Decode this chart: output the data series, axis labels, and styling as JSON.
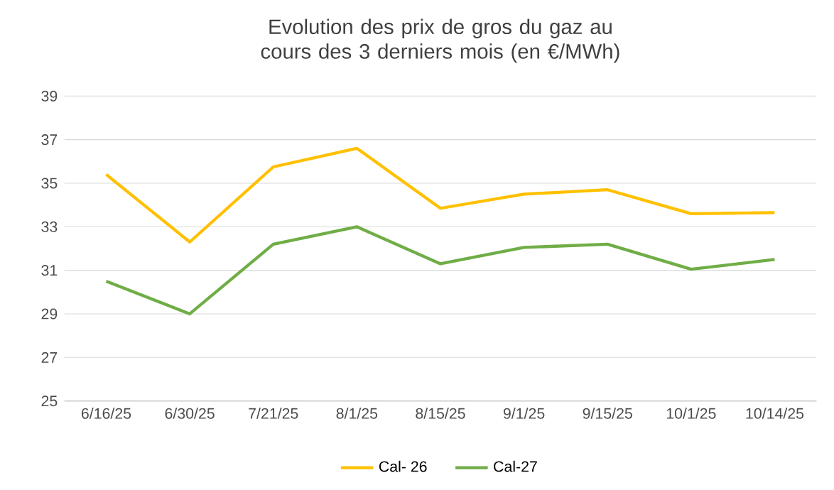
{
  "chart_data": {
    "type": "line",
    "title": "Evolution des prix de gros du gaz au cours des 3 derniers mois (en €/MWh)",
    "categories": [
      "6/16/25",
      "6/30/25",
      "7/21/25",
      "8/1/25",
      "8/15/25",
      "9/1/25",
      "9/15/25",
      "10/1/25",
      "10/14/25"
    ],
    "series": [
      {
        "name": "Cal- 26",
        "color": "#ffc000",
        "values": [
          35.4,
          32.3,
          35.75,
          36.6,
          33.85,
          34.5,
          34.7,
          33.6,
          33.65
        ]
      },
      {
        "name": "Cal-27",
        "color": "#70ad47",
        "values": [
          30.5,
          29.0,
          32.2,
          33.0,
          31.3,
          32.05,
          32.2,
          31.05,
          31.5
        ]
      }
    ],
    "ylim": [
      25,
      39
    ],
    "yticks": [
      25,
      27,
      29,
      31,
      33,
      35,
      37,
      39
    ],
    "grid": "y",
    "legend": "bottom"
  }
}
